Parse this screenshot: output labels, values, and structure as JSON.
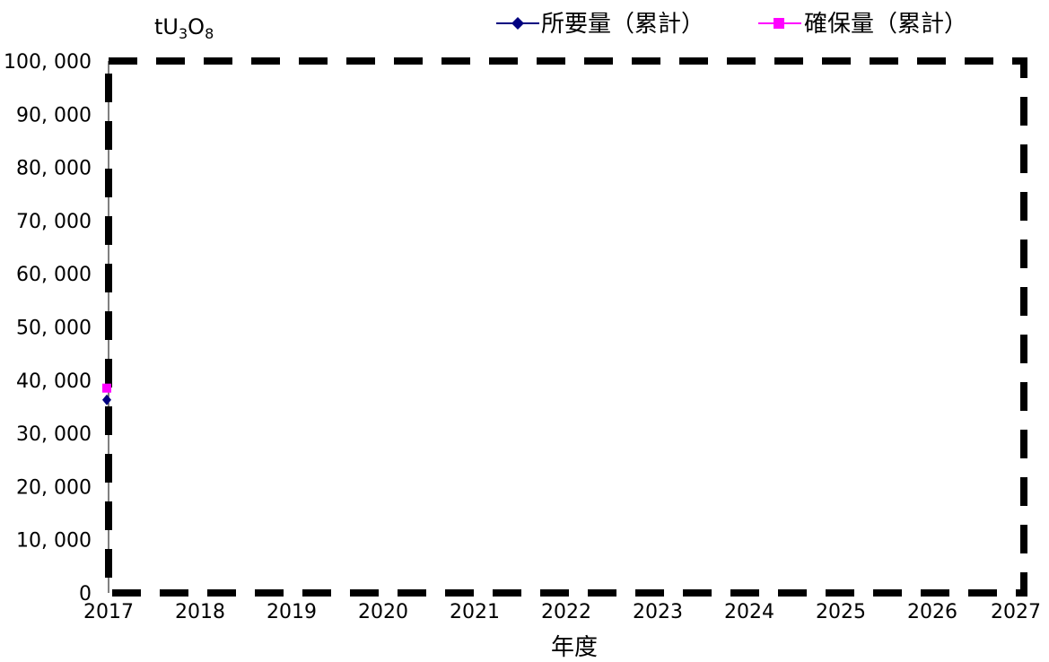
{
  "chart_data": {
    "type": "line",
    "title": "",
    "unit_label": {
      "base": "tU",
      "sub1": "3",
      "mid": "O",
      "sub2": "8"
    },
    "xlabel": "年度",
    "ylabel": "",
    "x": [
      "2017",
      "2018",
      "2019",
      "2020",
      "2021",
      "2022",
      "2023",
      "2024",
      "2025",
      "2026",
      "2027"
    ],
    "xlim": [
      2017,
      2027
    ],
    "ylim": [
      0,
      100000
    ],
    "y_ticks": [
      0,
      10000,
      20000,
      30000,
      40000,
      50000,
      60000,
      70000,
      80000,
      90000,
      100000
    ],
    "y_tick_labels": [
      "0",
      "10, 000",
      "20, 000",
      "30, 000",
      "40, 000",
      "50, 000",
      "60, 000",
      "70, 000",
      "80, 000",
      "90, 000",
      "100, 000"
    ],
    "grid": false,
    "legend_position": "top-right",
    "series": [
      {
        "name": "所要量（累計）",
        "color": "#000080",
        "marker": "diamond",
        "points": [
          {
            "x": 2017,
            "y": 36300
          }
        ]
      },
      {
        "name": "確保量（累計）",
        "color": "#ff00ff",
        "marker": "square",
        "points": [
          {
            "x": 2017,
            "y": 38500
          }
        ]
      }
    ]
  }
}
